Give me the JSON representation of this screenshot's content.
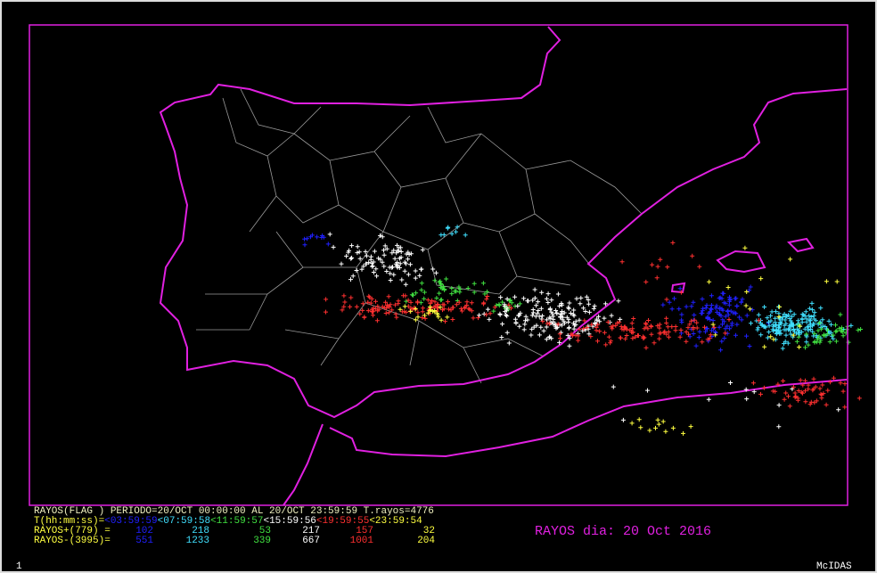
{
  "header": {
    "summary": "RAYOS(FLAG ) PERIODO=20/OCT 00:00:00 AL 20/OCT 23:59:59 T.rayos=4776",
    "time_label": "T(hh:mm:ss)=",
    "time_ranges": [
      "<03:59:59",
      "<07:59:58",
      "<11:59:57",
      "<15:59:56",
      "<19:59:55",
      "<23:59:54"
    ]
  },
  "rows": [
    {
      "label": "RAYOS+(779) =",
      "values": [
        102,
        218,
        53,
        217,
        157,
        32
      ]
    },
    {
      "label": "RAYOS-(3995)=",
      "values": [
        551,
        1233,
        339,
        667,
        1001,
        204
      ]
    }
  ],
  "caption": "RAYOS dia: 20 Oct 2016",
  "footer": {
    "left": "1",
    "right": "McIDAS"
  }
}
